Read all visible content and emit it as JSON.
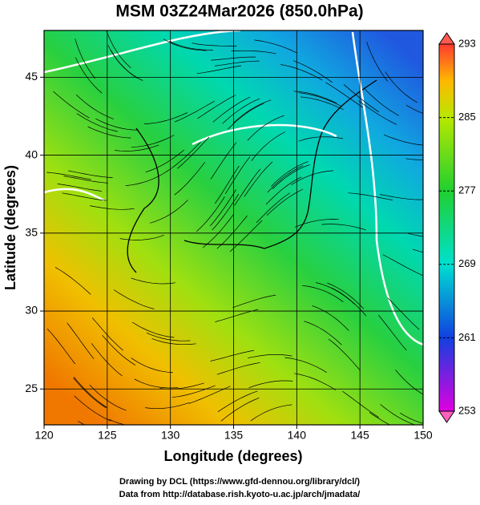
{
  "map": {
    "title": "MSM 03Z24Mar2026 (850.0hPa)",
    "x_axis": {
      "label": "Longitude (degrees)",
      "lim": [
        120,
        150
      ],
      "ticks": [
        120,
        125,
        130,
        135,
        140,
        145,
        150
      ]
    },
    "y_axis": {
      "label": "Latitude  (degrees)",
      "lim": [
        22.7,
        48
      ],
      "ticks": [
        25,
        30,
        35,
        40,
        45
      ]
    },
    "colorbar": {
      "lim": [
        253,
        293
      ],
      "ticks": [
        253,
        261,
        269,
        277,
        285,
        293
      ]
    }
  },
  "footer": [
    "Drawing by DCL (https://www.gfd-dennou.org/library/dcl/)",
    "Data from http://database.rish.kyoto-u.ac.jp/arch/jmadata/"
  ]
}
